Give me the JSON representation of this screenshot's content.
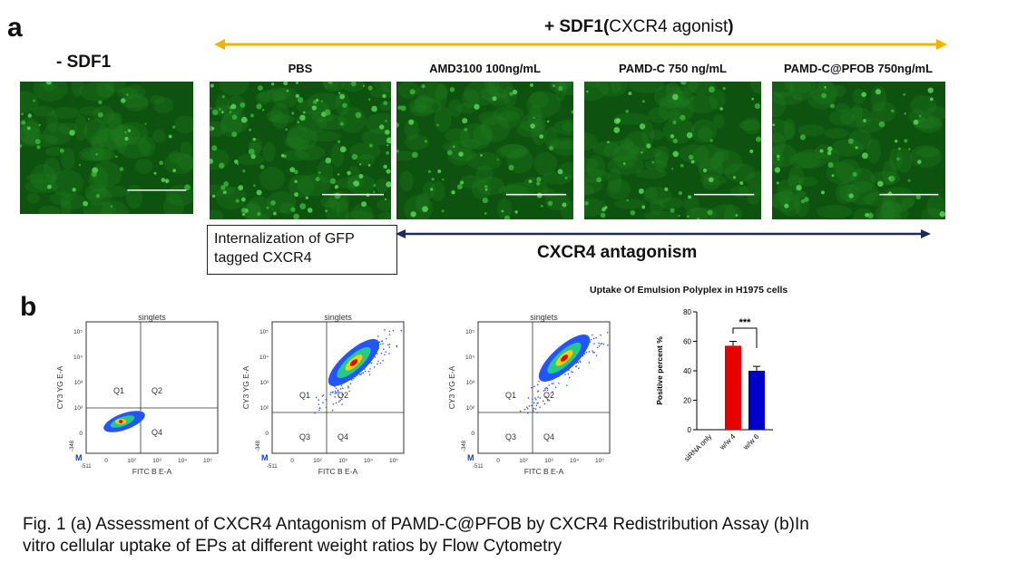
{
  "panel_a": {
    "letter": "a",
    "minus_label": "- SDF1",
    "plus_label": {
      "bold1": "+ SDF1(",
      "normal": "CXCR4 agonist",
      "bold2": ")"
    },
    "conditions": [
      "PBS",
      "AMD3100 100ng/mL",
      "PAMD-C 750 ng/mL",
      "PAMD-C@PFOB 750ng/mL"
    ],
    "note": "Internalization of GFP tagged CXCR4",
    "antagonism_label": "CXCR4 antagonism",
    "colors": {
      "agonist_arrow": "#f0b400",
      "antagonism_arrow": "#1f2a5a"
    }
  },
  "panel_b": {
    "letter": "b",
    "flow_plots": [
      {
        "title": "singlets",
        "xlabel": "FITC B E-A",
        "ylabel": "CY3 YG E-A",
        "quadrants": [
          "Q1",
          "Q2",
          "Q4"
        ],
        "x_min_label": "-511",
        "y_min_label": "-348"
      },
      {
        "title": "singlets",
        "xlabel": "FITC B E-A",
        "ylabel": "CY3 YG E-A",
        "quadrants": [
          "Q1",
          "Q2",
          "Q3",
          "Q4"
        ],
        "x_min_label": "-511",
        "y_min_label": "-348"
      },
      {
        "title": "singlets",
        "xlabel": "FITC B E-A",
        "ylabel": "CY3 YG E-A",
        "quadrants": [
          "Q1",
          "Q2",
          "Q3",
          "Q4"
        ],
        "x_min_label": "-511",
        "y_min_label": "-348"
      }
    ],
    "flow_marker": "M",
    "flow_ticks": [
      "0",
      "10²",
      "10³",
      "10⁴",
      "10⁵"
    ]
  },
  "chart_data": {
    "type": "bar",
    "title": "Uptake Of Emulsion Polyplex in H1975 cells",
    "categories": [
      "siRNA only",
      "w/w 4",
      "w/w 6"
    ],
    "values": [
      0,
      57,
      40
    ],
    "errors": [
      0,
      3,
      3
    ],
    "colors": [
      "#e60000",
      "#e60000",
      "#0000cc"
    ],
    "xlabel": "",
    "ylabel": "Positive percent %",
    "ylim": [
      0,
      80
    ],
    "yticks": [
      0,
      20,
      40,
      60,
      80
    ],
    "annotation": "***",
    "grid": false
  },
  "caption": {
    "line1": "Fig. 1 (a) Assessment of CXCR4 Antagonism of PAMD-C@PFOB by CXCR4 Redistribution Assay (b)In",
    "line2": "vitro cellular uptake of EPs at different weight ratios  by Flow Cytometry"
  }
}
